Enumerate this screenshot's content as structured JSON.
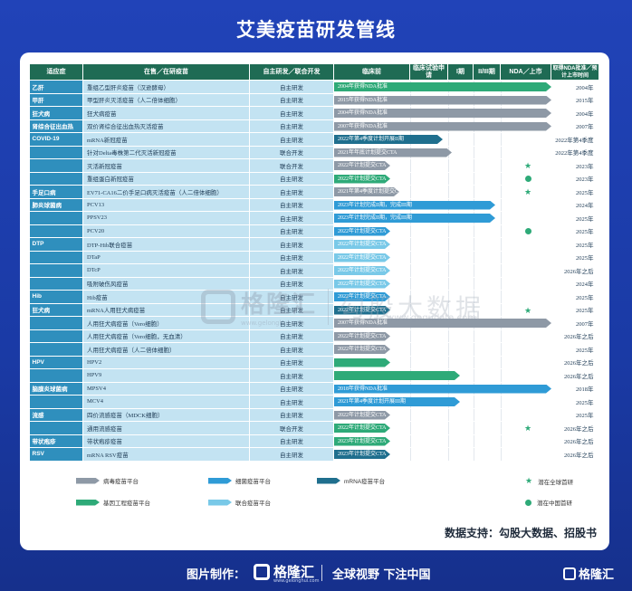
{
  "title": "艾美疫苗研发管线",
  "headers": {
    "disease": "适应症",
    "vaccine": "在售／在研疫苗",
    "mode": "自主研发／联合开发",
    "preclinical": "临床前",
    "ind": "临床试验申请",
    "phase1": "I期",
    "phase23": "II/III期",
    "nda": "NDA／上市",
    "year": "取得NDA批准／预计上市时间"
  },
  "colors": {
    "virus_platform": "#8e99a6",
    "bacterial_platform": "#2f9bd6",
    "mrna_platform": "#1f6f8e",
    "genetic_platform": "#2eaa78",
    "combo_platform": "#79c9e8"
  },
  "rows": [
    {
      "disease": "乙肝",
      "vaccine": "重组乙型肝炎疫苗（汉逊酵母）",
      "mode": "自主研发",
      "bar_color": "#2eaa78",
      "bar_end": 1.0,
      "bar_label": "2004年获得NDA批准",
      "mark": "",
      "year": "2004年"
    },
    {
      "disease": "甲肝",
      "vaccine": "甲型肝炎灭活疫苗（人二倍体细胞）",
      "mode": "自主研发",
      "bar_color": "#8e99a6",
      "bar_end": 1.0,
      "bar_label": "2015年获得NDA批准",
      "mark": "",
      "year": "2015年"
    },
    {
      "disease": "狂犬病",
      "vaccine": "狂犬病疫苗",
      "mode": "自主研发",
      "bar_color": "#8e99a6",
      "bar_end": 1.0,
      "bar_label": "2004年获得NDA批准",
      "mark": "",
      "year": "2004年"
    },
    {
      "disease": "肾综合征出血热",
      "vaccine": "双价肾综合征出血热灭活疫苗",
      "mode": "自主研发",
      "bar_color": "#8e99a6",
      "bar_end": 1.0,
      "bar_label": "2007年获得NDA批准",
      "mark": "",
      "year": "2007年"
    },
    {
      "disease": "COVID-19",
      "vaccine": "mRNA新冠疫苗",
      "mode": "自主研发",
      "bar_color": "#1f6f8e",
      "bar_end": 0.5,
      "bar_label": "2022年第4季度计划开展II期",
      "mark": "",
      "year": "2022年第4季度"
    },
    {
      "disease": "",
      "vaccine": "针对Delta毒株第二代灭活新冠疫苗",
      "mode": "联合开发",
      "bar_color": "#8e99a6",
      "bar_end": 0.54,
      "bar_label": "2021年年底计划提交CTA",
      "mark": "",
      "year": "2022年第4季度"
    },
    {
      "disease": "",
      "vaccine": "灭活新冠疫苗",
      "mode": "联合开发",
      "bar_color": "#8e99a6",
      "bar_end": 0.26,
      "bar_label": "2022年计划提交CTA",
      "mark": "star",
      "year": "2023年"
    },
    {
      "disease": "",
      "vaccine": "重组蛋白新冠疫苗",
      "mode": "自主研发",
      "bar_color": "#2eaa78",
      "bar_end": 0.26,
      "bar_label": "2022年计划提交CTA",
      "mark": "dot",
      "year": "2023年"
    },
    {
      "disease": "手足口病",
      "vaccine": "EV71-CA16二价手足口病灭活疫苗（人二倍体细胞）",
      "mode": "自主研发",
      "bar_color": "#8e99a6",
      "bar_end": 0.3,
      "bar_label": "2021年第4季度计划提交CTA",
      "mark": "star",
      "year": "2025年"
    },
    {
      "disease": "肺炎球菌病",
      "vaccine": "PCV13",
      "mode": "自主研发",
      "bar_color": "#2f9bd6",
      "bar_end": 0.74,
      "bar_label": "2023年计划完成II期，完成III期",
      "mark": "",
      "year": "2024年"
    },
    {
      "disease": "",
      "vaccine": "PPSV23",
      "mode": "自主研发",
      "bar_color": "#2f9bd6",
      "bar_end": 0.74,
      "bar_label": "2023年计划完成II期，完成III期",
      "mark": "",
      "year": "2025年"
    },
    {
      "disease": "",
      "vaccine": "PCV20",
      "mode": "自主研发",
      "bar_color": "#2f9bd6",
      "bar_end": 0.26,
      "bar_label": "2022年计划提交CTA",
      "mark": "dot",
      "year": "2025年"
    },
    {
      "disease": "DTP",
      "vaccine": "DTP-Hib联合疫苗",
      "mode": "自主研发",
      "bar_color": "#79c9e8",
      "bar_end": 0.26,
      "bar_label": "2022年计划提交CTA",
      "mark": "",
      "year": "2025年"
    },
    {
      "disease": "",
      "vaccine": "DTaP",
      "mode": "自主研发",
      "bar_color": "#79c9e8",
      "bar_end": 0.26,
      "bar_label": "2022年计划提交CTA",
      "mark": "",
      "year": "2025年"
    },
    {
      "disease": "",
      "vaccine": "DTcP",
      "mode": "自主研发",
      "bar_color": "#79c9e8",
      "bar_end": 0.26,
      "bar_label": "2022年计划提交CTA",
      "mark": "",
      "year": "2026年之后"
    },
    {
      "disease": "",
      "vaccine": "吸附破伤风疫苗",
      "mode": "自主研发",
      "bar_color": "#79c9e8",
      "bar_end": 0.26,
      "bar_label": "2022年计划提交CTA",
      "mark": "",
      "year": "2024年"
    },
    {
      "disease": "Hib",
      "vaccine": "Hib疫苗",
      "mode": "自主研发",
      "bar_color": "#2f9bd6",
      "bar_end": 0.26,
      "bar_label": "2022年计划提交CTA",
      "mark": "",
      "year": "2025年"
    },
    {
      "disease": "狂犬病",
      "vaccine": "mRNA人用狂犬病疫苗",
      "mode": "自主研发",
      "bar_color": "#1f6f8e",
      "bar_end": 0.26,
      "bar_label": "2022年计划提交CTA",
      "mark": "star",
      "year": "2025年"
    },
    {
      "disease": "",
      "vaccine": "人用狂犬病疫苗（Vero细胞）",
      "mode": "自主研发",
      "bar_color": "#8e99a6",
      "bar_end": 1.0,
      "bar_label": "2007年获得NDA批准",
      "mark": "",
      "year": "2007年"
    },
    {
      "disease": "",
      "vaccine": "人用狂犬病疫苗（Vero细胞，无血清）",
      "mode": "自主研发",
      "bar_color": "#8e99a6",
      "bar_end": 0.26,
      "bar_label": "2022年计划提交CTA",
      "mark": "",
      "year": "2026年之后"
    },
    {
      "disease": "",
      "vaccine": "人用狂犬病疫苗（人二倍体细胞）",
      "mode": "自主研发",
      "bar_color": "#8e99a6",
      "bar_end": 0.26,
      "bar_label": "2022年计划提交CTA",
      "mark": "",
      "year": "2025年"
    },
    {
      "disease": "HPV",
      "vaccine": "HPV2",
      "mode": "自主研发",
      "bar_color": "#2eaa78",
      "bar_end": 0.26,
      "bar_label": "",
      "mark": "",
      "year": "2026年之后"
    },
    {
      "disease": "",
      "vaccine": "HPV9",
      "mode": "自主研发",
      "bar_color": "#2eaa78",
      "bar_end": 0.58,
      "bar_label": "",
      "mark": "",
      "year": "2026年之后"
    },
    {
      "disease": "脑膜炎球菌病",
      "vaccine": "MPSV4",
      "mode": "自主研发",
      "bar_color": "#2f9bd6",
      "bar_end": 1.0,
      "bar_label": "2018年获得NDA批准",
      "mark": "",
      "year": "2018年"
    },
    {
      "disease": "",
      "vaccine": "MCV4",
      "mode": "自主研发",
      "bar_color": "#2f9bd6",
      "bar_end": 0.58,
      "bar_label": "2021年第4季度计划开展III期",
      "mark": "",
      "year": "2025年"
    },
    {
      "disease": "流感",
      "vaccine": "四价流感疫苗（MDCK细胞）",
      "mode": "自主研发",
      "bar_color": "#8e99a6",
      "bar_end": 0.26,
      "bar_label": "2022年计划提交CTA",
      "mark": "",
      "year": "2025年"
    },
    {
      "disease": "",
      "vaccine": "通用流感疫苗",
      "mode": "联合开发",
      "bar_color": "#2eaa78",
      "bar_end": 0.26,
      "bar_label": "2022年计划提交CTA",
      "mark": "star",
      "year": "2026年之后"
    },
    {
      "disease": "带状疱疹",
      "vaccine": "带状疱疹疫苗",
      "mode": "自主研发",
      "bar_color": "#2eaa78",
      "bar_end": 0.26,
      "bar_label": "2023年计划提交CTA",
      "mark": "",
      "year": "2026年之后"
    },
    {
      "disease": "RSV",
      "vaccine": "mRNA RSV疫苗",
      "mode": "自主研发",
      "bar_color": "#1f6f8e",
      "bar_end": 0.26,
      "bar_label": "2023年计划提交CTA",
      "mark": "",
      "year": "2026年之后"
    }
  ],
  "legend": {
    "virus": "病毒疫苗平台",
    "bacterial": "细菌疫苗平台",
    "mrna": "mRNA疫苗平台",
    "global_first": "潜在全球首研",
    "genetic": "基因工程疫苗平台",
    "combo": "联合疫苗平台",
    "china_first": "潜在中国首研"
  },
  "source": "数据支持：勾股大数据、招股书",
  "watermark": {
    "brand": "格隆汇",
    "url": "www.gelonghui.com",
    "text": "勾股大数据",
    "sub": "www.gogudata.com"
  },
  "footer": {
    "made_by": "图片制作：",
    "brand": "格隆汇",
    "url": "www.gelonghui.com",
    "slogan": "全球视野 下注中国"
  },
  "corner_brand": "格隆汇"
}
